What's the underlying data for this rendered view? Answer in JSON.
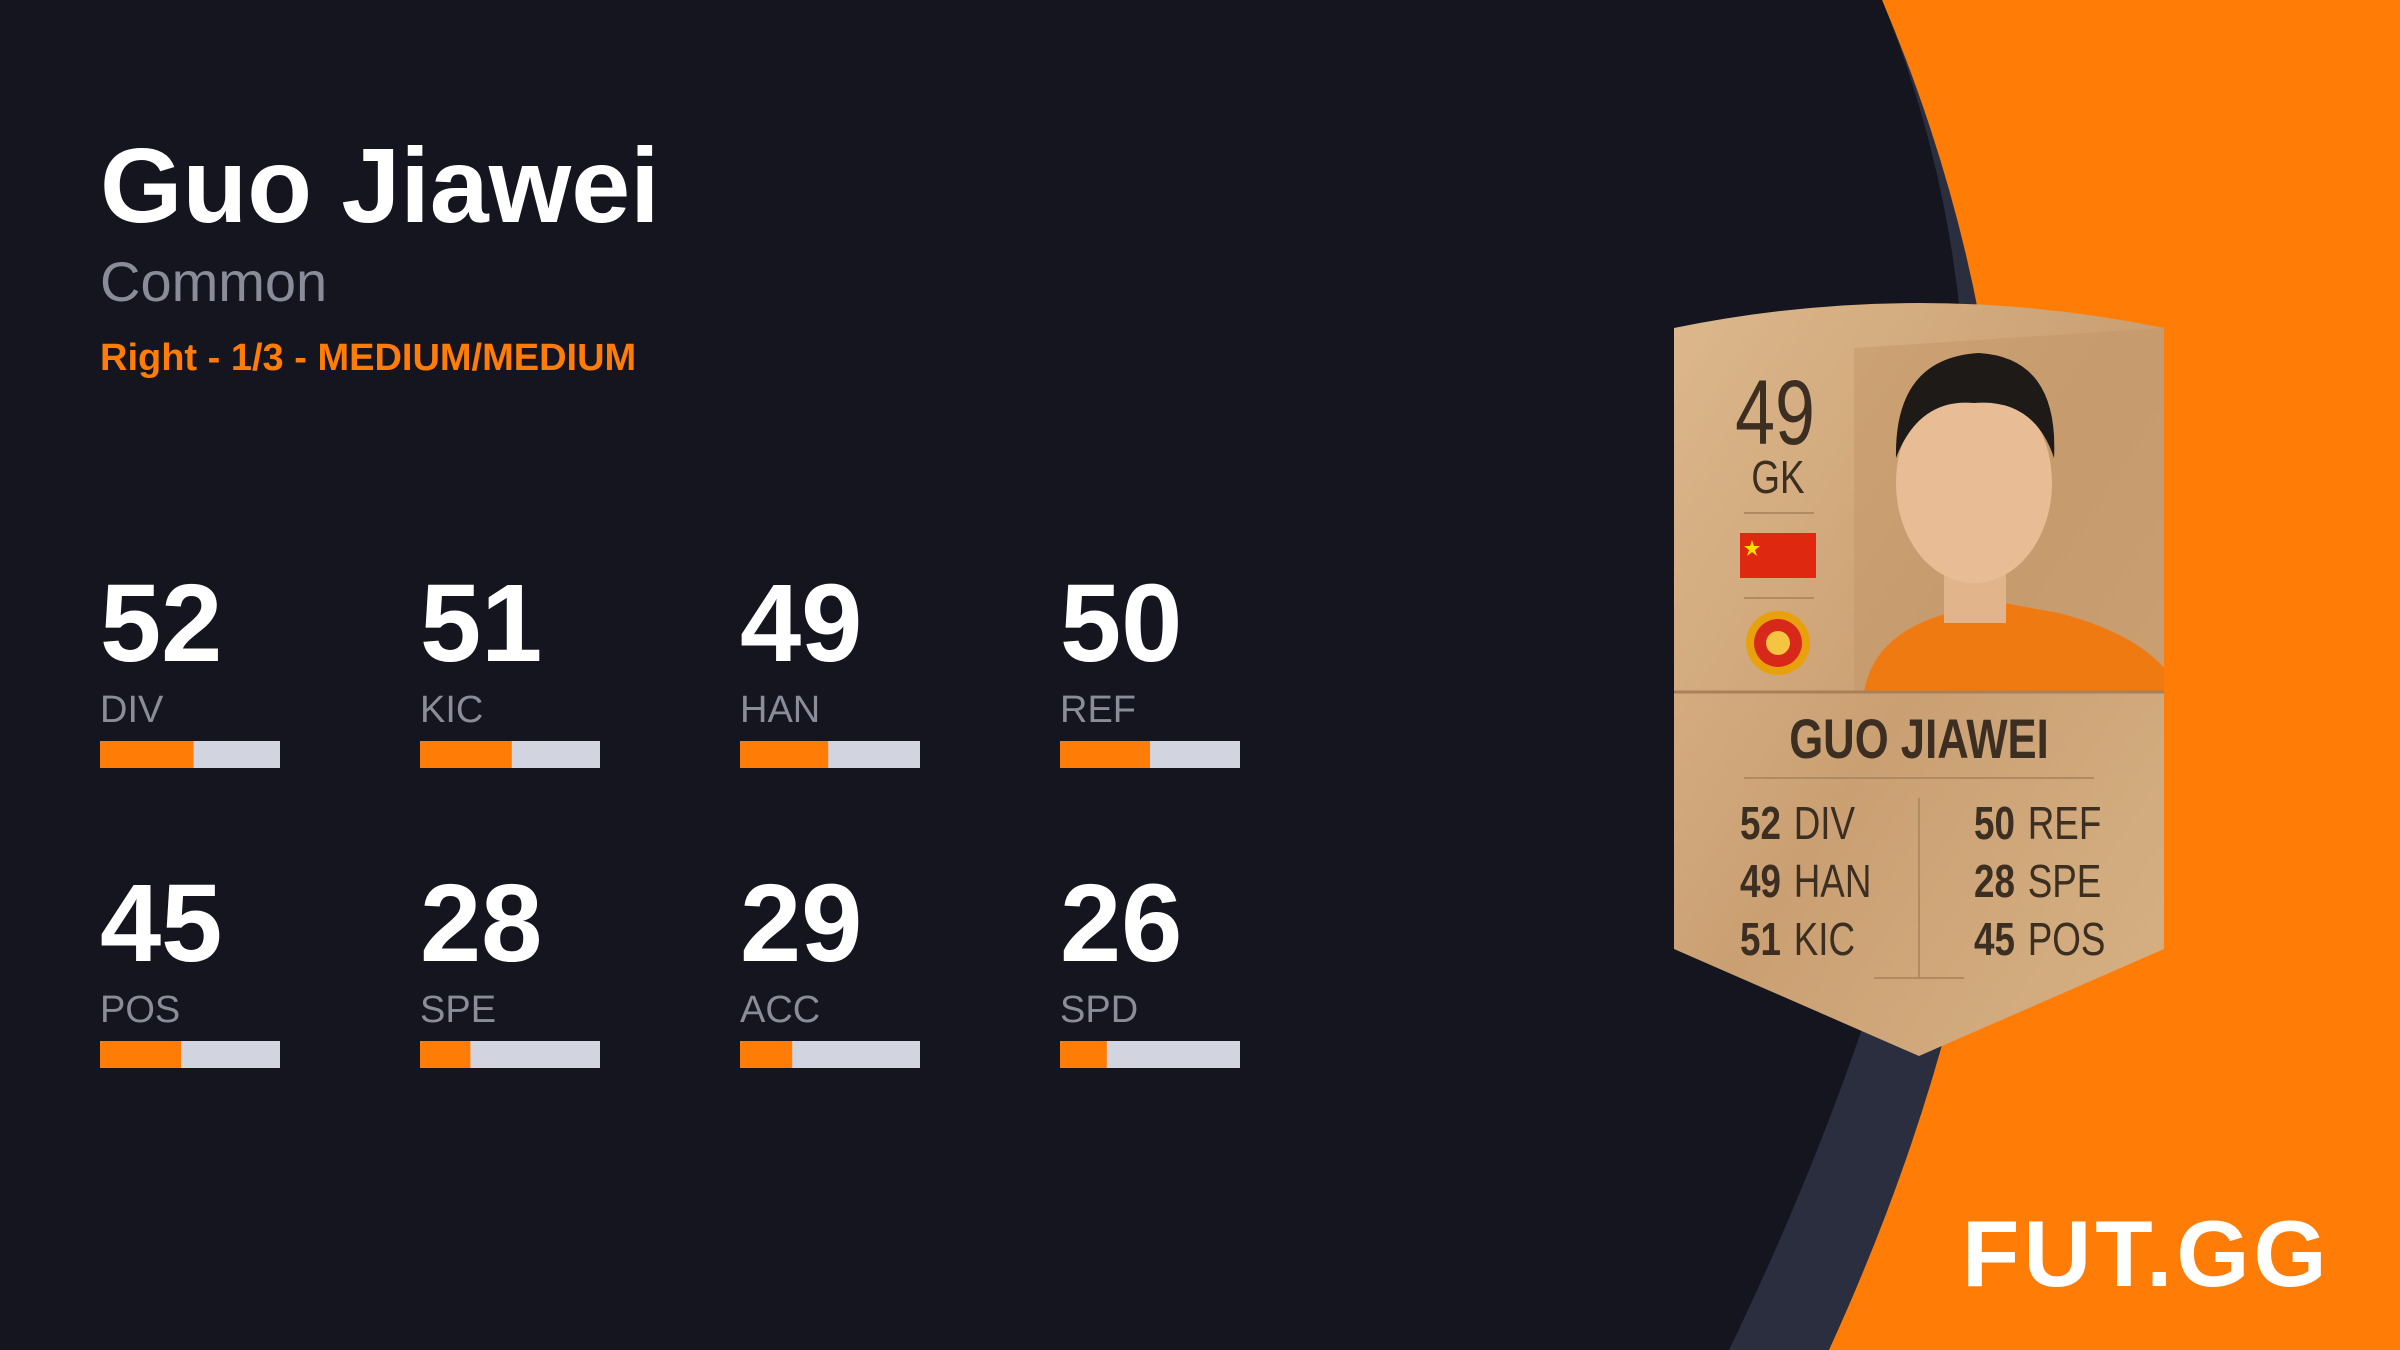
{
  "player": {
    "name": "Guo Jiawei",
    "rarity": "Common",
    "info": "Right - 1/3 - MEDIUM/MEDIUM"
  },
  "stats": [
    {
      "value": 52,
      "label": "DIV"
    },
    {
      "value": 51,
      "label": "KIC"
    },
    {
      "value": 49,
      "label": "HAN"
    },
    {
      "value": 50,
      "label": "REF"
    },
    {
      "value": 45,
      "label": "POS"
    },
    {
      "value": 28,
      "label": "SPE"
    },
    {
      "value": 29,
      "label": "ACC"
    },
    {
      "value": 26,
      "label": "SPD"
    }
  ],
  "card": {
    "rating": 49,
    "position": "GK",
    "name": "GUO JIAWEI",
    "stats": [
      {
        "value": 52,
        "label": "DIV"
      },
      {
        "value": 49,
        "label": "HAN"
      },
      {
        "value": 51,
        "label": "KIC"
      },
      {
        "value": 50,
        "label": "REF"
      },
      {
        "value": 28,
        "label": "SPE"
      },
      {
        "value": 45,
        "label": "POS"
      }
    ]
  },
  "logo": "FUT.GG"
}
